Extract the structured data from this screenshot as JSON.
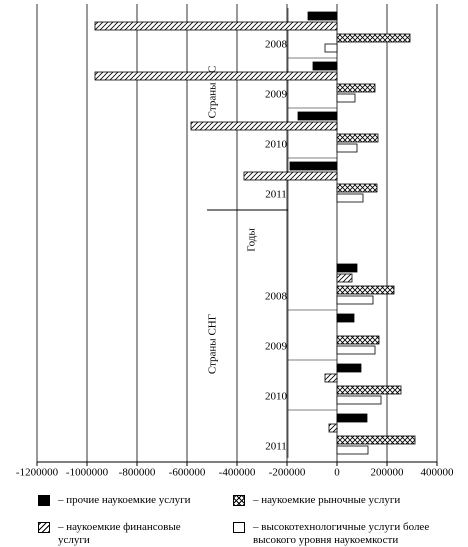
{
  "chart_data": {
    "type": "hbar",
    "y_label": "Годы",
    "group_labels": [
      "Страны ЕС",
      "Страны СНГ"
    ],
    "categories": [
      "2008",
      "2009",
      "2010",
      "2011",
      "2008",
      "2009",
      "2010",
      "2011"
    ],
    "series": [
      {
        "name": "прочие наукоемкие услуги",
        "color": "#000000",
        "hatch": "none",
        "values": [
          -116000,
          -96000,
          -156000,
          -188000,
          80000,
          68000,
          96000,
          120000
        ]
      },
      {
        "name": "наукоемкие финансовые услуги",
        "color": "#ffffff",
        "hatch": "diagonal",
        "values": [
          -968000,
          -968000,
          -584000,
          -372000,
          60000,
          0,
          -48000,
          -32000
        ]
      },
      {
        "name": "наукоемкие рыночные услуги",
        "color": "#ffffff",
        "hatch": "cross",
        "values": [
          292000,
          152000,
          164000,
          160000,
          228000,
          168000,
          256000,
          312000
        ]
      },
      {
        "name": "высокотехнологичные услуги более высокого уровня наукоемкости",
        "color": "#ffffff",
        "hatch": "none",
        "values": [
          -48000,
          72000,
          80000,
          104000,
          144000,
          152000,
          176000,
          124000
        ]
      }
    ],
    "xlim": [
      -1200000,
      400000
    ],
    "xticks": [
      -1200000,
      -1000000,
      -800000,
      -600000,
      -400000,
      -200000,
      0,
      200000,
      400000
    ],
    "grid": true
  }
}
